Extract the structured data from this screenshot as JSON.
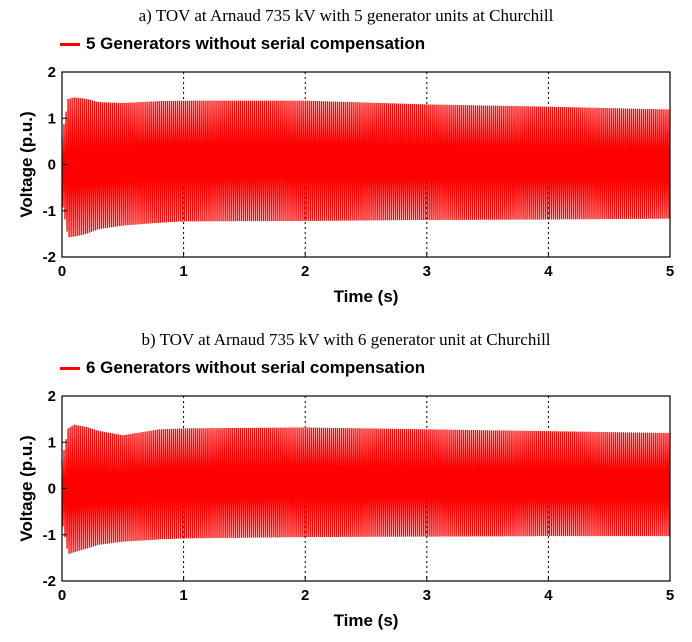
{
  "chart_data": [
    {
      "type": "line",
      "title": "a) TOV at Arnaud 735 kV with 5 generator units at Churchill",
      "xlabel": "Time (s)",
      "ylabel": "Voltage (p.u.)",
      "xlim": [
        0,
        5
      ],
      "ylim": [
        -2,
        2
      ],
      "xticks": [
        "0",
        "1",
        "2",
        "3",
        "4",
        "5"
      ],
      "yticks": [
        "2",
        "1",
        "0",
        "-1",
        "-2"
      ],
      "grid": "vertical dotted at x ticks",
      "legend_position": "top-left, above plot",
      "series": [
        {
          "name": "5 Generators without serial compensation",
          "color": "#ff0000",
          "frequency_hz": 60,
          "envelope": {
            "t": [
              0,
              0.05,
              0.1,
              0.2,
              0.3,
              0.5,
              0.8,
              1.0,
              2.0,
              3.0,
              4.0,
              5.0
            ],
            "upper": [
              0.6,
              1.42,
              1.45,
              1.42,
              1.35,
              1.33,
              1.37,
              1.38,
              1.38,
              1.3,
              1.25,
              1.19
            ],
            "lower": [
              -0.8,
              -1.58,
              -1.56,
              -1.5,
              -1.4,
              -1.32,
              -1.26,
              -1.23,
              -1.22,
              -1.2,
              -1.19,
              -1.17
            ]
          }
        }
      ]
    },
    {
      "type": "line",
      "title": "b) TOV at Arnaud 735 kV with 6 generator unit at Churchill",
      "xlabel": "Time (s)",
      "ylabel": "Voltage (p.u.)",
      "xlim": [
        0,
        5
      ],
      "ylim": [
        -2,
        2
      ],
      "xticks": [
        "0",
        "1",
        "2",
        "3",
        "4",
        "5"
      ],
      "yticks": [
        "2",
        "1",
        "0",
        "-1",
        "-2"
      ],
      "grid": "vertical dotted at x ticks",
      "legend_position": "top-left, above plot",
      "series": [
        {
          "name": "6 Generators without serial compensation",
          "color": "#ff0000",
          "frequency_hz": 60,
          "envelope": {
            "t": [
              0,
              0.05,
              0.1,
              0.2,
              0.3,
              0.5,
              0.8,
              1.0,
              2.0,
              3.0,
              4.0,
              5.0
            ],
            "upper": [
              0.6,
              1.3,
              1.38,
              1.33,
              1.25,
              1.15,
              1.28,
              1.3,
              1.32,
              1.28,
              1.24,
              1.2
            ],
            "lower": [
              -0.7,
              -1.42,
              -1.38,
              -1.3,
              -1.22,
              -1.15,
              -1.1,
              -1.08,
              -1.05,
              -1.04,
              -1.03,
              -1.03
            ]
          }
        }
      ]
    }
  ]
}
